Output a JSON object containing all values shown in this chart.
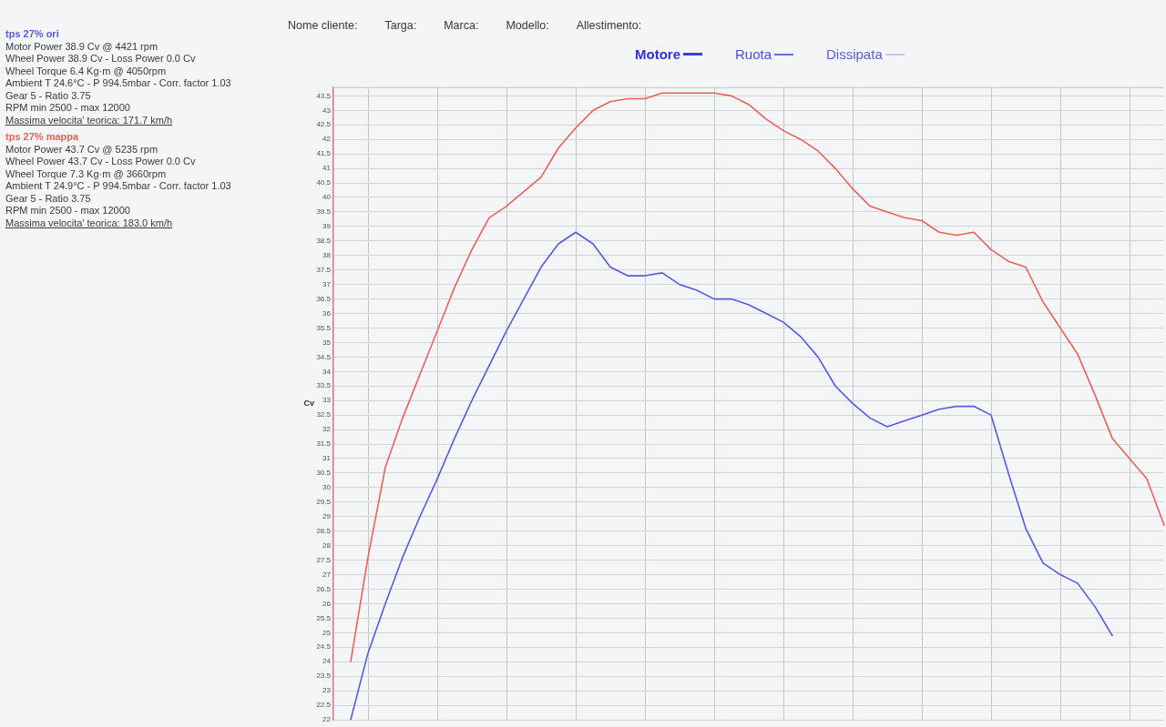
{
  "chart_data": {
    "type": "line",
    "ylabel": "Cv",
    "categories": [
      null,
      null,
      null,
      null,
      null,
      null,
      null,
      null,
      null,
      null,
      null,
      null,
      null,
      null,
      null,
      null,
      null,
      null,
      null,
      null,
      null,
      null,
      null,
      null,
      null,
      null,
      null,
      null,
      null,
      null,
      null,
      null,
      null,
      null,
      null,
      null,
      null,
      null,
      null,
      null,
      null,
      null,
      null,
      null,
      null,
      null,
      null,
      null,
      null
    ],
    "series": [
      {
        "name": "tps 27% ori",
        "color": "#5a5ae0",
        "values": [
          null,
          22.0,
          24.3,
          26.0,
          27.6,
          29.0,
          30.3,
          31.7,
          33.0,
          34.2,
          35.4,
          36.5,
          37.6,
          38.4,
          38.8,
          38.4,
          37.6,
          37.3,
          37.3,
          37.4,
          37.0,
          36.8,
          36.5,
          36.5,
          36.3,
          36.0,
          35.7,
          35.2,
          34.5,
          33.5,
          32.9,
          32.4,
          32.1,
          32.3,
          32.5,
          32.7,
          32.8,
          32.8,
          32.5,
          30.5,
          28.6,
          27.4,
          27.0,
          26.7,
          25.9,
          24.9,
          null,
          null,
          null
        ]
      },
      {
        "name": "tps 27% mappa",
        "color": "#f0605a",
        "values": [
          null,
          24.0,
          27.6,
          30.7,
          32.4,
          33.9,
          35.4,
          36.9,
          38.2,
          39.3,
          39.7,
          40.2,
          40.7,
          41.7,
          42.4,
          43.0,
          43.3,
          43.4,
          43.4,
          43.6,
          43.6,
          43.6,
          43.6,
          43.5,
          43.2,
          42.7,
          42.3,
          42.0,
          41.6,
          41.0,
          40.3,
          39.7,
          39.5,
          39.3,
          39.2,
          38.8,
          38.7,
          38.8,
          38.2,
          37.8,
          37.6,
          36.4,
          35.5,
          34.6,
          33.2,
          31.7,
          31.0,
          30.3,
          28.7
        ]
      }
    ],
    "ylim": [
      22,
      43.8
    ],
    "yticks": [
      22,
      22.5,
      23,
      23.5,
      24,
      24.5,
      25,
      25.5,
      26,
      26.5,
      27,
      27.5,
      28,
      28.5,
      29,
      29.5,
      30,
      30.5,
      31,
      31.5,
      32,
      32.5,
      33,
      33.5,
      34,
      34.5,
      35,
      35.5,
      36,
      36.5,
      37,
      37.5,
      38,
      38.5,
      39,
      39.5,
      40,
      40.5,
      41,
      41.5,
      42,
      42.5,
      43,
      43.5
    ],
    "grid": true,
    "tick_labels": "y",
    "marker": "none",
    "annotations": [
      "Nome cliente:",
      "Targa:",
      "Marca:",
      "Modello:",
      "Allestimento:",
      "Motore",
      "Ruota",
      "Dissipata",
      "Motor Power 38.9 Cv @ 4421 rpm",
      "Wheel Power 38.9 Cv - Loss Power 0.0 Cv",
      "Wheel Torque 6.4 Kg·m @ 4050rpm",
      "Ambient T 24.6°C - P 994.5mbar - Corr. factor 1.03",
      "Gear 5 - Ratio 3.75",
      "RPM min 2500 - max 12000",
      "Massima velocita' teorica: 171.7 km/h",
      "Motor Power 43.7 Cv @ 5235 rpm",
      "Wheel Power 43.7 Cv - Loss Power 0.0 Cv",
      "Wheel Torque 7.3 Kg·m @ 3660rpm",
      "Ambient T 24.9°C - P 994.5mbar - Corr. factor 1.03",
      "Gear 5 - Ratio 3.75",
      "RPM min 2500 - max 12000",
      "Massima velocita' teorica: 183.0 km/h"
    ]
  }
}
